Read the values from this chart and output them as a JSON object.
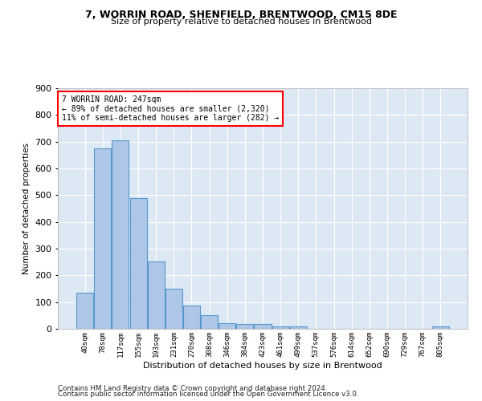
{
  "title1": "7, WORRIN ROAD, SHENFIELD, BRENTWOOD, CM15 8DE",
  "title2": "Size of property relative to detached houses in Brentwood",
  "xlabel": "Distribution of detached houses by size in Brentwood",
  "ylabel": "Number of detached properties",
  "categories": [
    "40sqm",
    "78sqm",
    "117sqm",
    "155sqm",
    "193sqm",
    "231sqm",
    "270sqm",
    "308sqm",
    "346sqm",
    "384sqm",
    "423sqm",
    "461sqm",
    "499sqm",
    "537sqm",
    "576sqm",
    "614sqm",
    "652sqm",
    "690sqm",
    "729sqm",
    "767sqm",
    "805sqm"
  ],
  "values": [
    135,
    675,
    705,
    490,
    252,
    150,
    88,
    50,
    22,
    18,
    18,
    10,
    8,
    0,
    0,
    0,
    0,
    0,
    0,
    0,
    8
  ],
  "bar_color": "#aec6e8",
  "bar_edge_color": "#5599cc",
  "annotation_line1": "7 WORRIN ROAD: 247sqm",
  "annotation_line2": "← 89% of detached houses are smaller (2,320)",
  "annotation_line3": "11% of semi-detached houses are larger (282) →",
  "annotation_box_color": "white",
  "annotation_box_edge_color": "red",
  "footnote1": "Contains HM Land Registry data © Crown copyright and database right 2024.",
  "footnote2": "Contains public sector information licensed under the Open Government Licence v3.0.",
  "ylim": [
    0,
    900
  ],
  "yticks": [
    0,
    100,
    200,
    300,
    400,
    500,
    600,
    700,
    800,
    900
  ],
  "bg_color": "#dde8f5",
  "fig_bg_color": "#ffffff",
  "grid_color": "#ffffff",
  "property_bar_index": 5
}
